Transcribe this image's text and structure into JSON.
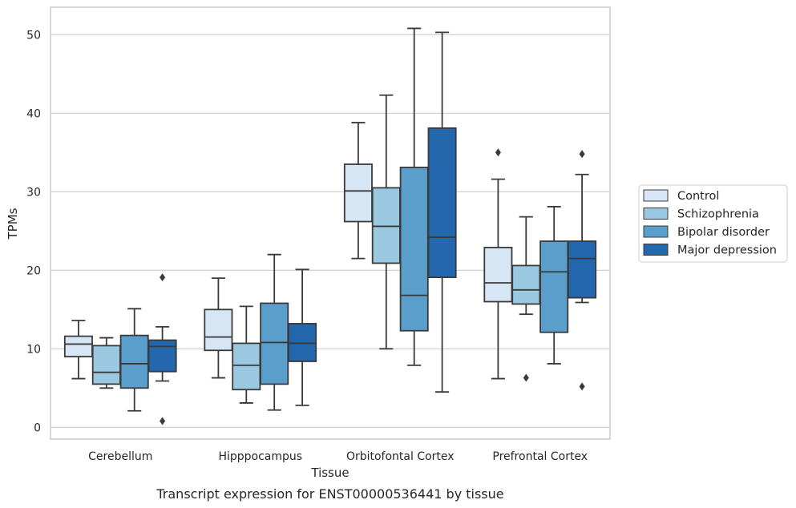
{
  "caption": "Transcript expression for ENST00000536441 by tissue",
  "chart_data": {
    "type": "box",
    "xlabel": "Tissue",
    "ylabel": "TPMs",
    "ylim": [
      -1.5,
      53.5
    ],
    "yticks": [
      0,
      10,
      20,
      30,
      40,
      50
    ],
    "grid": true,
    "legend_position": "right",
    "categories": [
      "Cerebellum",
      "Hipppocampus",
      "Orbitofontal Cortex",
      "Prefrontal Cortex"
    ],
    "series": [
      {
        "name": "Control",
        "color": "#d6e6f4",
        "boxes": [
          {
            "whislo": 6.2,
            "q1": 9.0,
            "med": 10.6,
            "q3": 11.6,
            "whishi": 13.6,
            "fliers": []
          },
          {
            "whislo": 6.3,
            "q1": 9.8,
            "med": 11.5,
            "q3": 15.0,
            "whishi": 19.0,
            "fliers": []
          },
          {
            "whislo": 21.5,
            "q1": 26.2,
            "med": 30.1,
            "q3": 33.5,
            "whishi": 38.8,
            "fliers": []
          },
          {
            "whislo": 6.2,
            "q1": 16.0,
            "med": 18.4,
            "q3": 22.9,
            "whishi": 31.6,
            "fliers": [
              35.0
            ]
          }
        ]
      },
      {
        "name": "Schizophrenia",
        "color": "#9ac8e0",
        "boxes": [
          {
            "whislo": 5.0,
            "q1": 5.5,
            "med": 7.0,
            "q3": 10.4,
            "whishi": 11.4,
            "fliers": []
          },
          {
            "whislo": 3.1,
            "q1": 4.8,
            "med": 7.9,
            "q3": 10.7,
            "whishi": 15.4,
            "fliers": []
          },
          {
            "whislo": 10.0,
            "q1": 20.9,
            "med": 25.6,
            "q3": 30.5,
            "whishi": 42.3,
            "fliers": []
          },
          {
            "whislo": 14.4,
            "q1": 15.7,
            "med": 17.5,
            "q3": 20.6,
            "whishi": 26.8,
            "fliers": [
              6.3
            ]
          }
        ]
      },
      {
        "name": "Bipolar disorder",
        "color": "#5a9fcc",
        "boxes": [
          {
            "whislo": 2.1,
            "q1": 5.0,
            "med": 8.1,
            "q3": 11.7,
            "whishi": 15.1,
            "fliers": []
          },
          {
            "whislo": 2.2,
            "q1": 5.5,
            "med": 10.8,
            "q3": 15.8,
            "whishi": 22.0,
            "fliers": []
          },
          {
            "whislo": 7.9,
            "q1": 12.3,
            "med": 16.8,
            "q3": 33.1,
            "whishi": 50.8,
            "fliers": []
          },
          {
            "whislo": 8.1,
            "q1": 12.1,
            "med": 19.8,
            "q3": 23.7,
            "whishi": 28.1,
            "fliers": []
          }
        ]
      },
      {
        "name": "Major depression",
        "color": "#2367ac",
        "boxes": [
          {
            "whislo": 5.9,
            "q1": 7.1,
            "med": 10.3,
            "q3": 11.1,
            "whishi": 12.8,
            "fliers": [
              19.1,
              0.8
            ]
          },
          {
            "whislo": 2.8,
            "q1": 8.4,
            "med": 10.7,
            "q3": 13.2,
            "whishi": 20.1,
            "fliers": []
          },
          {
            "whislo": 4.5,
            "q1": 19.1,
            "med": 24.2,
            "q3": 38.1,
            "whishi": 50.3,
            "fliers": []
          },
          {
            "whislo": 15.9,
            "q1": 16.5,
            "med": 21.5,
            "q3": 23.7,
            "whishi": 32.2,
            "fliers": [
              34.8,
              5.2
            ]
          }
        ]
      }
    ]
  }
}
